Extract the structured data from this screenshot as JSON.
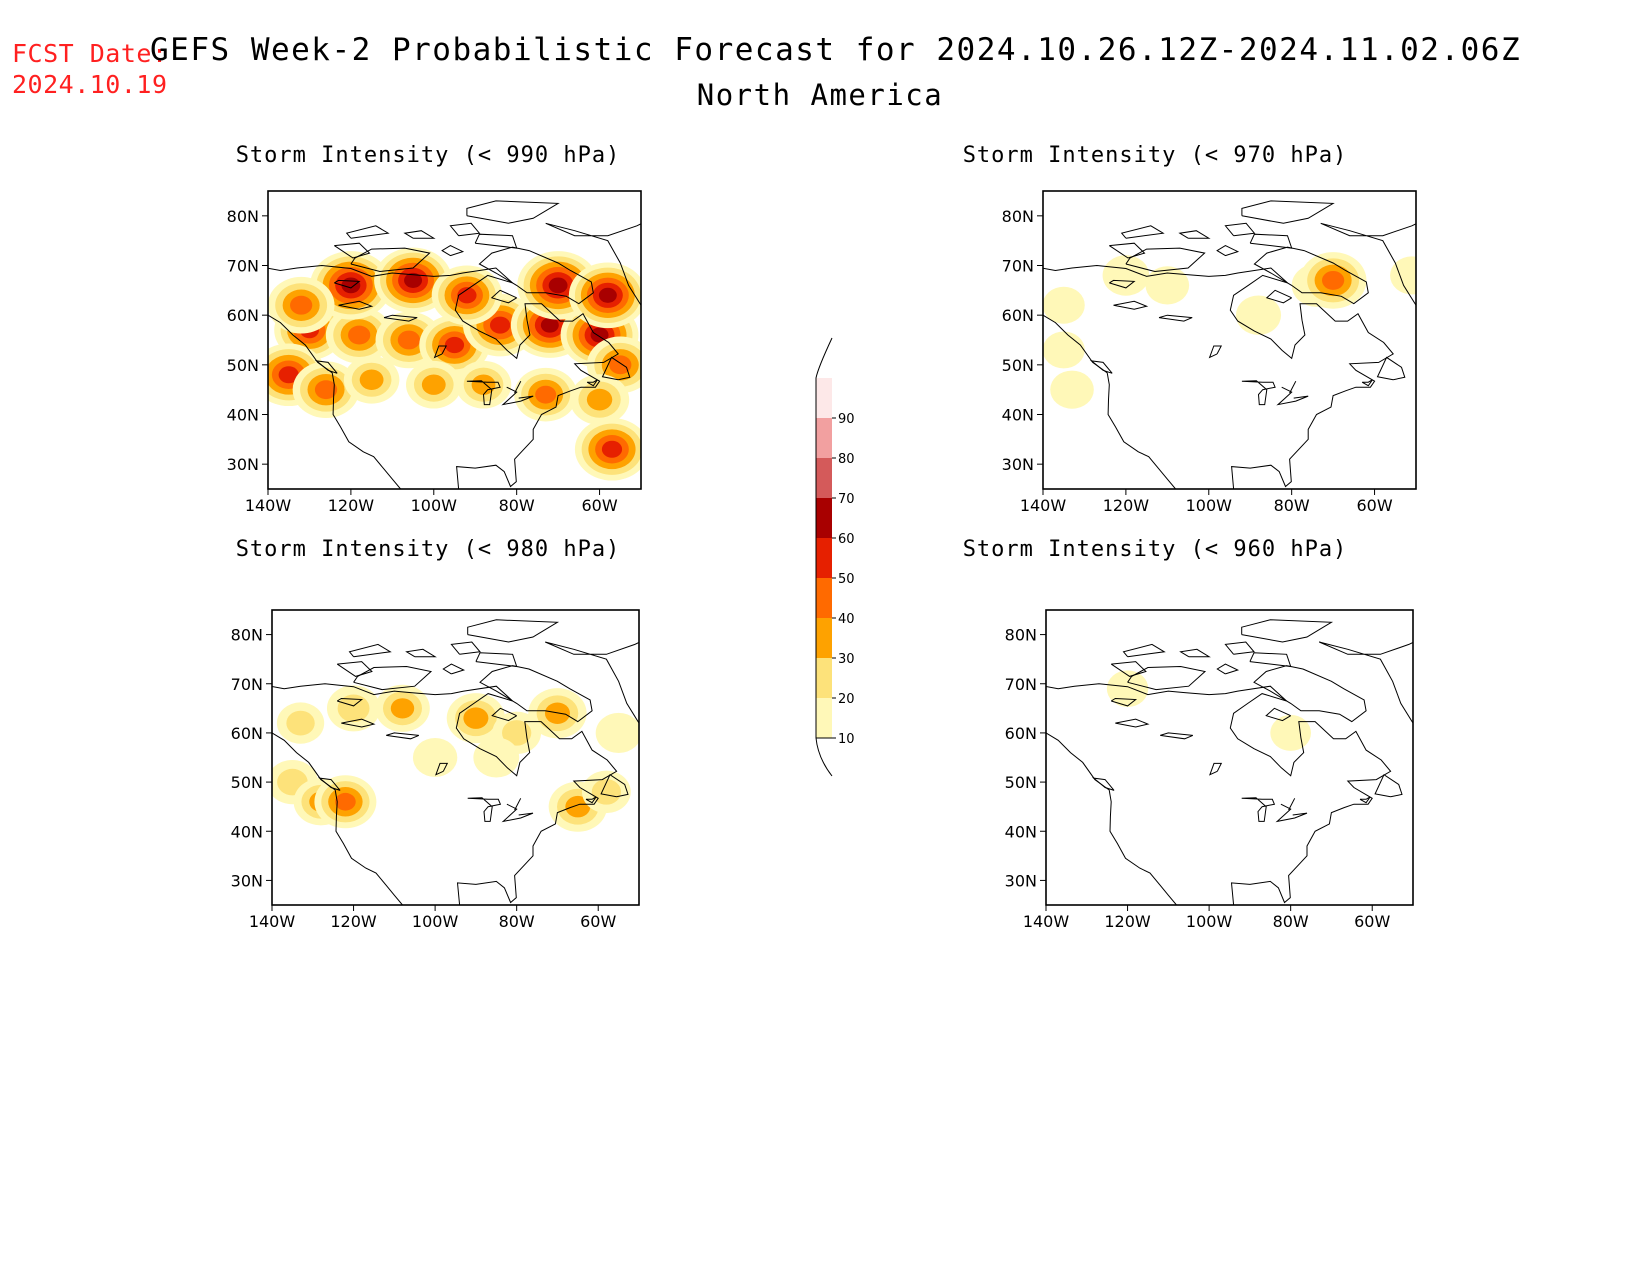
{
  "header": {
    "fcst_label": "FCST Date:",
    "fcst_date": "2024.10.19",
    "title": "GEFS Week-2 Probabilistic Forecast for 2024.10.26.12Z-2024.11.02.06Z",
    "subtitle": "North America"
  },
  "chart_data": {
    "type": "heatmap",
    "map": {
      "lon_range": [
        -140,
        -50
      ],
      "lat_range": [
        25,
        85
      ],
      "lon_ticks": [
        -140,
        -120,
        -100,
        -80,
        -60
      ],
      "lon_tick_labels": [
        "140W",
        "120W",
        "100W",
        "80W",
        "60W"
      ],
      "lat_ticks": [
        30,
        40,
        50,
        60,
        70,
        80
      ],
      "lat_tick_labels": [
        "30N",
        "40N",
        "50N",
        "60N",
        "70N",
        "80N"
      ]
    },
    "colorbar": {
      "levels": [
        10,
        20,
        30,
        40,
        50,
        60,
        70,
        80,
        90
      ],
      "level_labels": [
        "10",
        "20",
        "30",
        "40",
        "50",
        "60",
        "70",
        "80",
        "90"
      ],
      "colors": [
        "#fff8b8",
        "#fde27a",
        "#fea200",
        "#ff6a00",
        "#e62000",
        "#a80000",
        "#d45a5a",
        "#f2a0a0",
        "#fde8e8"
      ]
    },
    "panels": [
      {
        "title": "Storm Intensity (< 990 hPa)",
        "threshold_hPa": 990,
        "blobs": [
          {
            "lon": -130,
            "lat": 57,
            "val": 50
          },
          {
            "lon": -135,
            "lat": 48,
            "val": 55
          },
          {
            "lon": -126,
            "lat": 45,
            "val": 45
          },
          {
            "lon": -118,
            "lat": 56,
            "val": 45
          },
          {
            "lon": -106,
            "lat": 55,
            "val": 45
          },
          {
            "lon": -95,
            "lat": 54,
            "val": 50
          },
          {
            "lon": -84,
            "lat": 58,
            "val": 55
          },
          {
            "lon": -72,
            "lat": 58,
            "val": 60
          },
          {
            "lon": -60,
            "lat": 56,
            "val": 60
          },
          {
            "lon": -55,
            "lat": 50,
            "val": 45
          },
          {
            "lon": -115,
            "lat": 47,
            "val": 30
          },
          {
            "lon": -100,
            "lat": 46,
            "val": 30
          },
          {
            "lon": -88,
            "lat": 46,
            "val": 30
          },
          {
            "lon": -73,
            "lat": 44,
            "val": 40
          },
          {
            "lon": -60,
            "lat": 43,
            "val": 35
          },
          {
            "lon": -57,
            "lat": 33,
            "val": 55
          },
          {
            "lon": -120,
            "lat": 66,
            "val": 65
          },
          {
            "lon": -105,
            "lat": 67,
            "val": 60
          },
          {
            "lon": -92,
            "lat": 64,
            "val": 50
          },
          {
            "lon": -70,
            "lat": 66,
            "val": 65
          },
          {
            "lon": -58,
            "lat": 64,
            "val": 60
          },
          {
            "lon": -132,
            "lat": 62,
            "val": 45
          }
        ]
      },
      {
        "title": "Storm Intensity (< 970 hPa)",
        "threshold_hPa": 970,
        "blobs": [
          {
            "lon": -120,
            "lat": 68,
            "val": 18
          },
          {
            "lon": -110,
            "lat": 66,
            "val": 14
          },
          {
            "lon": -88,
            "lat": 60,
            "val": 16
          },
          {
            "lon": -74,
            "lat": 66,
            "val": 22
          },
          {
            "lon": -70,
            "lat": 67,
            "val": 45
          },
          {
            "lon": -133,
            "lat": 45,
            "val": 14
          },
          {
            "lon": -135,
            "lat": 53,
            "val": 12
          },
          {
            "lon": -135,
            "lat": 62,
            "val": 12
          },
          {
            "lon": -51,
            "lat": 68,
            "val": 14
          }
        ]
      },
      {
        "title": "Storm Intensity (< 980 hPa)",
        "threshold_hPa": 980,
        "blobs": [
          {
            "lon": -135,
            "lat": 50,
            "val": 25
          },
          {
            "lon": -128,
            "lat": 46,
            "val": 30
          },
          {
            "lon": -122,
            "lat": 46,
            "val": 40
          },
          {
            "lon": -120,
            "lat": 65,
            "val": 28
          },
          {
            "lon": -108,
            "lat": 65,
            "val": 30
          },
          {
            "lon": -90,
            "lat": 63,
            "val": 35
          },
          {
            "lon": -80,
            "lat": 60,
            "val": 22
          },
          {
            "lon": -70,
            "lat": 64,
            "val": 35
          },
          {
            "lon": -55,
            "lat": 60,
            "val": 18
          },
          {
            "lon": -100,
            "lat": 55,
            "val": 16
          },
          {
            "lon": -85,
            "lat": 55,
            "val": 18
          },
          {
            "lon": -65,
            "lat": 45,
            "val": 35
          },
          {
            "lon": -58,
            "lat": 48,
            "val": 22
          },
          {
            "lon": -133,
            "lat": 62,
            "val": 20
          }
        ]
      },
      {
        "title": "Storm Intensity (< 960 hPa)",
        "threshold_hPa": 960,
        "blobs": [
          {
            "lon": -120,
            "lat": 69,
            "val": 12
          },
          {
            "lon": -80,
            "lat": 60,
            "val": 11
          }
        ]
      }
    ]
  }
}
